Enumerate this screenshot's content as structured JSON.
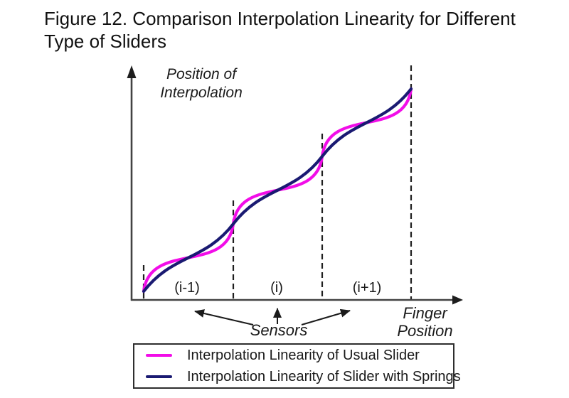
{
  "figure": {
    "caption": "Figure 12. Comparison Interpolation Linearity for Different Type of Sliders",
    "caption_line1": "Figure 12. Comparison Interpolation Linearity for Different",
    "caption_line2": "Type of Sliders"
  },
  "axes": {
    "y_label_line1": "Position of",
    "y_label_line2": "Interpolation",
    "x_label_line1": "Finger",
    "x_label_line2": "Position"
  },
  "sensor_labels": [
    "(i-1)",
    "(i)",
    "(i+1)"
  ],
  "annotation": {
    "label": "Sensors"
  },
  "legend": [
    {
      "label": "Interpolation Linearity of Usual Slider",
      "color": "#F20DE8"
    },
    {
      "label": "Interpolation Linearity of Slider with Springs",
      "color": "#1A1A72"
    }
  ],
  "colors": {
    "axis": "#434343",
    "dashed_line": "#1f1f1f",
    "arrow": "#1b1b1b",
    "text": "#1a1a1a",
    "legend_border": "#2e2e2e"
  },
  "chart_data": {
    "type": "line",
    "title": "Comparison Interpolation Linearity for Different Type of Sliders",
    "xlabel": "Finger Position",
    "ylabel": "Position of Interpolation",
    "x_units": "sensor pitch (segments between adjacent sensors)",
    "segment_tick_labels": [
      "(i-1)",
      "(i)",
      "(i+1)"
    ],
    "segment_boundaries_x": [
      0,
      1,
      2,
      3
    ],
    "grid": "dashed vertical lines at each sensor segment boundary",
    "legend_position": "below chart, boxed",
    "x": [
      0,
      0.1,
      0.25,
      0.5,
      0.75,
      0.9,
      1,
      1.1,
      1.25,
      1.5,
      1.75,
      1.9,
      2,
      2.1,
      2.25,
      2.5,
      2.75,
      2.9,
      3
    ],
    "series": [
      {
        "name": "Interpolation Linearity of Usual Slider",
        "color": "#F20DE8",
        "shape": "strong S-curve per sensor segment: steep at segment boundaries, flat plateau at segment centers",
        "bezier_handles": {
          "hx": 0.07,
          "hy": 0.75
        },
        "values": [
          0,
          0.3,
          0.42,
          0.5,
          0.58,
          0.7,
          1.0,
          1.3,
          1.42,
          1.5,
          1.58,
          1.7,
          2.0,
          2.3,
          2.42,
          2.5,
          2.58,
          2.7,
          3.0
        ]
      },
      {
        "name": "Interpolation Linearity of Slider with Springs",
        "color": "#1A1A72",
        "shape": "gentle S-curve per sensor segment, close to ideal straight line",
        "bezier_handles": {
          "hx": 0.32,
          "hy": 0.55
        },
        "values": [
          0,
          0.17,
          0.33,
          0.5,
          0.67,
          0.83,
          1.0,
          1.17,
          1.33,
          1.5,
          1.67,
          1.83,
          2.0,
          2.17,
          2.33,
          2.5,
          2.67,
          2.83,
          3.0
        ]
      }
    ]
  }
}
